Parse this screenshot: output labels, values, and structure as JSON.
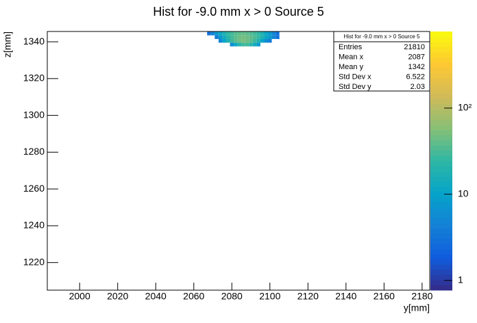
{
  "chart_data": {
    "type": "heatmap",
    "title": "Hist for -9.0 mm x > 0 Source 5",
    "x_label": "y[mm]",
    "y_label": "z[mm]",
    "xlim": [
      1983,
      2184
    ],
    "ylim": [
      1205,
      1345.6
    ],
    "xticks": [
      2000,
      2020,
      2040,
      2060,
      2080,
      2100,
      2120,
      2140,
      2160,
      2180
    ],
    "yticks": [
      1220,
      1240,
      1260,
      1280,
      1300,
      1320,
      1340
    ],
    "x_bins": [
      2067,
      2069,
      2071,
      2073,
      2075,
      2077,
      2079,
      2081,
      2083,
      2085,
      2087,
      2089,
      2091,
      2093,
      2095,
      2097,
      2099,
      2101,
      2103,
      2105
    ],
    "y_bins": [
      1337.5,
      1339.5,
      1341.5,
      1343.5,
      1345.5
    ],
    "z": [
      [
        null,
        null,
        null,
        null,
        null,
        null,
        6,
        12,
        20,
        28,
        30,
        22,
        14,
        8,
        null,
        null,
        null,
        null,
        null
      ],
      [
        null,
        null,
        null,
        5,
        10,
        18,
        28,
        38,
        45,
        50,
        45,
        38,
        28,
        18,
        10,
        6,
        4,
        null,
        null
      ],
      [
        null,
        null,
        4,
        8,
        14,
        22,
        30,
        38,
        45,
        48,
        45,
        40,
        34,
        26,
        18,
        12,
        8,
        5,
        3
      ],
      [
        3,
        5,
        8,
        12,
        18,
        25,
        30,
        35,
        38,
        40,
        38,
        34,
        30,
        25,
        18,
        12,
        8,
        5,
        3
      ]
    ],
    "zlog": true,
    "zlim": [
      0.77,
      775
    ],
    "zticks": [
      1,
      10,
      {
        "value": 100,
        "label": "10²"
      }
    ],
    "stats": {
      "title": "Hist for -9.0 mm x > 0 Source 5",
      "rows": [
        [
          "Entries",
          21810
        ],
        [
          "Mean x",
          2087
        ],
        [
          "Mean y",
          1342
        ],
        [
          "Std Dev x",
          6.522
        ],
        [
          "Std Dev y",
          2.03
        ]
      ]
    }
  }
}
